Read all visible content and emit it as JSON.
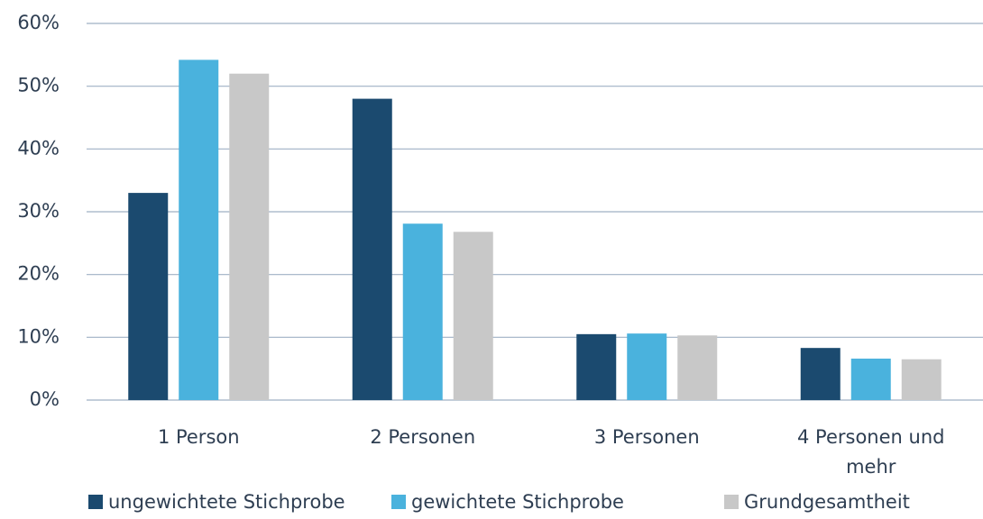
{
  "chart_data": {
    "type": "bar",
    "categories": [
      "1 Person",
      "2 Personen",
      "3 Personen",
      "4 Personen und mehr"
    ],
    "series": [
      {
        "name": "ungewichtete Stichprobe",
        "color": "#1b4a6f",
        "values": [
          33,
          48,
          10.5,
          8.3
        ]
      },
      {
        "name": "gewichtete Stichprobe",
        "color": "#4ab2dd",
        "values": [
          54.2,
          28.1,
          10.6,
          6.6
        ]
      },
      {
        "name": "Grundgesamtheit",
        "color": "#c8c8c8",
        "values": [
          52,
          26.8,
          10.3,
          6.5
        ]
      }
    ],
    "ylim": [
      0,
      60
    ],
    "yticks": [
      {
        "value": 0,
        "label": "0%"
      },
      {
        "value": 10,
        "label": "10%"
      },
      {
        "value": 20,
        "label": "20%"
      },
      {
        "value": 30,
        "label": "30%"
      },
      {
        "value": 40,
        "label": "40%"
      },
      {
        "value": 50,
        "label": "50%"
      },
      {
        "value": 60,
        "label": "60%"
      }
    ],
    "grid": true,
    "legend": "bottom"
  }
}
